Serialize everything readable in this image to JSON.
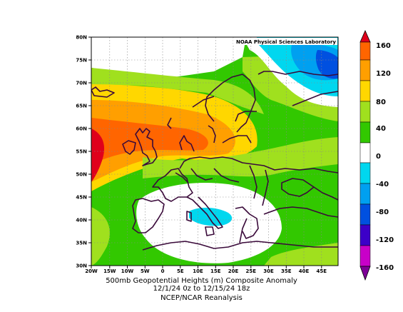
{
  "credit": "NOAA Physical Sciences Laboratory",
  "caption": {
    "line1": "500mb Geopotential Heights (m)   Composite Anomaly",
    "line2": "12/1/24 0z  to 12/15/24 18z",
    "line3": "NCEP/NCAR Reanalysis"
  },
  "axes": {
    "lon_labels": [
      "20W",
      "15W",
      "10W",
      "5W",
      "0",
      "5E",
      "10E",
      "15E",
      "20E",
      "25E",
      "30E",
      "35E",
      "40E",
      "45E"
    ],
    "lat_labels": [
      "30N",
      "35N",
      "40N",
      "45N",
      "50N",
      "55N",
      "60N",
      "65N",
      "70N",
      "75N",
      "80N"
    ]
  },
  "colorbar": {
    "labels": [
      "160",
      "120",
      "80",
      "40",
      "0",
      "-40",
      "-80",
      "-120",
      "-160"
    ],
    "colors": [
      "#e0001b",
      "#ff6500",
      "#ff9f00",
      "#ffd700",
      "#a0e01e",
      "#32c800",
      "#ffffff",
      "#00d7ef",
      "#00a0f0",
      "#0050e0",
      "#3c00c8",
      "#c800c8",
      "#7d0096"
    ]
  }
}
